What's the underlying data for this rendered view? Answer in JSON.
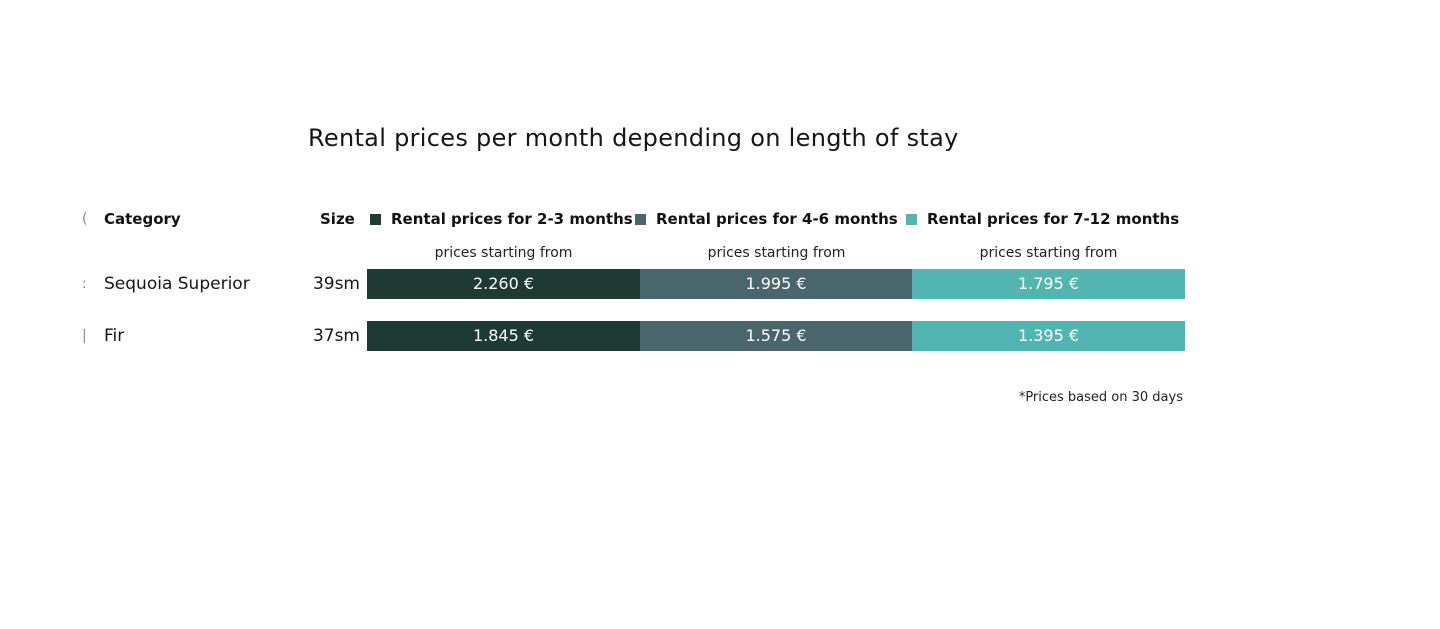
{
  "title": "Rental prices per month depending on length of stay",
  "header": {
    "category_label": "Category",
    "size_label": "Size"
  },
  "tiers": [
    {
      "label": "Rental prices for 2-3 months",
      "sublabel": "prices starting from",
      "color": "#1d3b33"
    },
    {
      "label": "Rental prices for 4-6 months",
      "sublabel": "prices starting from",
      "color": "#48666b"
    },
    {
      "label": "Rental prices for 7-12 months",
      "sublabel": "prices starting from",
      "color": "#52b5b1"
    }
  ],
  "rows": [
    {
      "category": "Sequoia Superior",
      "size": "39sm",
      "prices": [
        "2.260 €",
        "1.995 €",
        "1.795 €"
      ]
    },
    {
      "category": "Fir",
      "size": "37sm",
      "prices": [
        "1.845 €",
        "1.575 €",
        "1.395 €"
      ]
    }
  ],
  "footnote": "*Prices based on 30 days"
}
